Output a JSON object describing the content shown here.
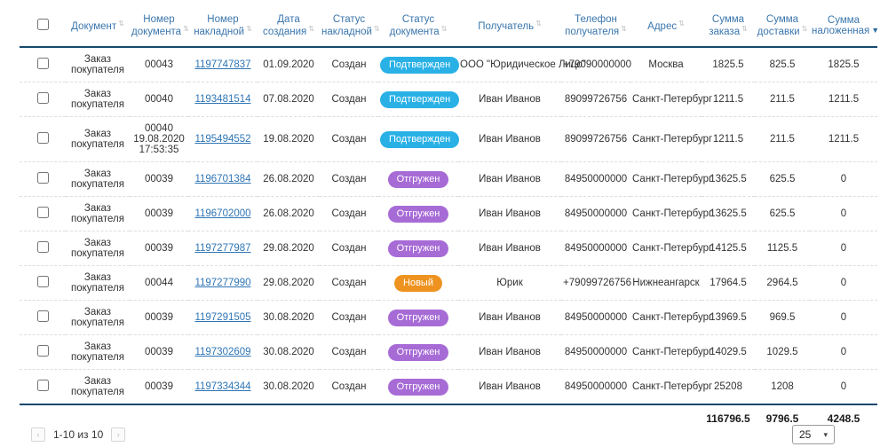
{
  "table": {
    "columns": [
      {
        "label": "Документ"
      },
      {
        "label": "Номер документа"
      },
      {
        "label": "Номер накладной"
      },
      {
        "label": "Дата создания"
      },
      {
        "label": "Статус накладной"
      },
      {
        "label": "Статус документа"
      },
      {
        "label": "Получатель"
      },
      {
        "label": "Телефон получателя"
      },
      {
        "label": "Адрес"
      },
      {
        "label": "Сумма заказа"
      },
      {
        "label": "Сумма доставки"
      },
      {
        "label": "Сумма наложенная",
        "sorted": "desc"
      }
    ],
    "rows": [
      {
        "document": "Заказ покупателя",
        "doc_number": "00043",
        "invoice_number": "1197747837",
        "created": "01.09.2020",
        "invoice_status": "Создан",
        "doc_status": "Подтвержден",
        "recipient": "ООО \"Юридическое Лицо\"",
        "phone": "+79090000000",
        "address": "Москва",
        "order_sum": "1825.5",
        "delivery_sum": "825.5",
        "cod_sum": "1825.5"
      },
      {
        "document": "Заказ покупателя",
        "doc_number": "00040",
        "invoice_number": "1193481514",
        "created": "07.08.2020",
        "invoice_status": "Создан",
        "doc_status": "Подтвержден",
        "recipient": "Иван Иванов",
        "phone": "89099726756",
        "address": "Санкт-Петербург",
        "order_sum": "1211.5",
        "delivery_sum": "211.5",
        "cod_sum": "1211.5"
      },
      {
        "document": "Заказ покупателя",
        "doc_number": "00040 19.08.2020 17:53:35",
        "invoice_number": "1195494552",
        "created": "19.08.2020",
        "invoice_status": "Создан",
        "doc_status": "Подтвержден",
        "recipient": "Иван Иванов",
        "phone": "89099726756",
        "address": "Санкт-Петербург",
        "order_sum": "1211.5",
        "delivery_sum": "211.5",
        "cod_sum": "1211.5"
      },
      {
        "document": "Заказ покупателя",
        "doc_number": "00039",
        "invoice_number": "1196701384",
        "created": "26.08.2020",
        "invoice_status": "Создан",
        "doc_status": "Отгружен",
        "recipient": "Иван Иванов",
        "phone": "84950000000",
        "address": "Санкт-Петербург",
        "order_sum": "13625.5",
        "delivery_sum": "625.5",
        "cod_sum": "0"
      },
      {
        "document": "Заказ покупателя",
        "doc_number": "00039",
        "invoice_number": "1196702000",
        "created": "26.08.2020",
        "invoice_status": "Создан",
        "doc_status": "Отгружен",
        "recipient": "Иван Иванов",
        "phone": "84950000000",
        "address": "Санкт-Петербург",
        "order_sum": "13625.5",
        "delivery_sum": "625.5",
        "cod_sum": "0"
      },
      {
        "document": "Заказ покупателя",
        "doc_number": "00039",
        "invoice_number": "1197277987",
        "created": "29.08.2020",
        "invoice_status": "Создан",
        "doc_status": "Отгружен",
        "recipient": "Иван Иванов",
        "phone": "84950000000",
        "address": "Санкт-Петербург",
        "order_sum": "14125.5",
        "delivery_sum": "1125.5",
        "cod_sum": "0"
      },
      {
        "document": "Заказ покупателя",
        "doc_number": "00044",
        "invoice_number": "1197277990",
        "created": "29.08.2020",
        "invoice_status": "Создан",
        "doc_status": "Новый",
        "recipient": "Юрик",
        "phone": "+79099726756",
        "address": "Нижнеангарск",
        "order_sum": "17964.5",
        "delivery_sum": "2964.5",
        "cod_sum": "0"
      },
      {
        "document": "Заказ покупателя",
        "doc_number": "00039",
        "invoice_number": "1197291505",
        "created": "30.08.2020",
        "invoice_status": "Создан",
        "doc_status": "Отгружен",
        "recipient": "Иван Иванов",
        "phone": "84950000000",
        "address": "Санкт-Петербург",
        "order_sum": "13969.5",
        "delivery_sum": "969.5",
        "cod_sum": "0"
      },
      {
        "document": "Заказ покупателя",
        "doc_number": "00039",
        "invoice_number": "1197302609",
        "created": "30.08.2020",
        "invoice_status": "Создан",
        "doc_status": "Отгружен",
        "recipient": "Иван Иванов",
        "phone": "84950000000",
        "address": "Санкт-Петербург",
        "order_sum": "14029.5",
        "delivery_sum": "1029.5",
        "cod_sum": "0"
      },
      {
        "document": "Заказ покупателя",
        "doc_number": "00039",
        "invoice_number": "1197334344",
        "created": "30.08.2020",
        "invoice_status": "Создан",
        "doc_status": "Отгружен",
        "recipient": "Иван Иванов",
        "phone": "84950000000",
        "address": "Санкт-Петербург",
        "order_sum": "25208",
        "delivery_sum": "1208",
        "cod_sum": "0"
      }
    ],
    "totals": {
      "order_sum": "116796.5",
      "delivery_sum": "9796.5",
      "cod_sum": "4248.5"
    }
  },
  "badge_colors": {
    "Подтвержден": "#29b1e6",
    "Отгружен": "#a76bd6",
    "Новый": "#ee9320"
  },
  "colors": {
    "header_text": "#3a76ad",
    "header_line": "#17496e",
    "link": "#2e75b5"
  },
  "icons": {
    "sort": "⇅",
    "sorted_desc": "▼",
    "caret": "▾",
    "prev": "‹",
    "next": "›"
  },
  "pagination": {
    "label": "1-10 из 10",
    "page_size": "25"
  }
}
